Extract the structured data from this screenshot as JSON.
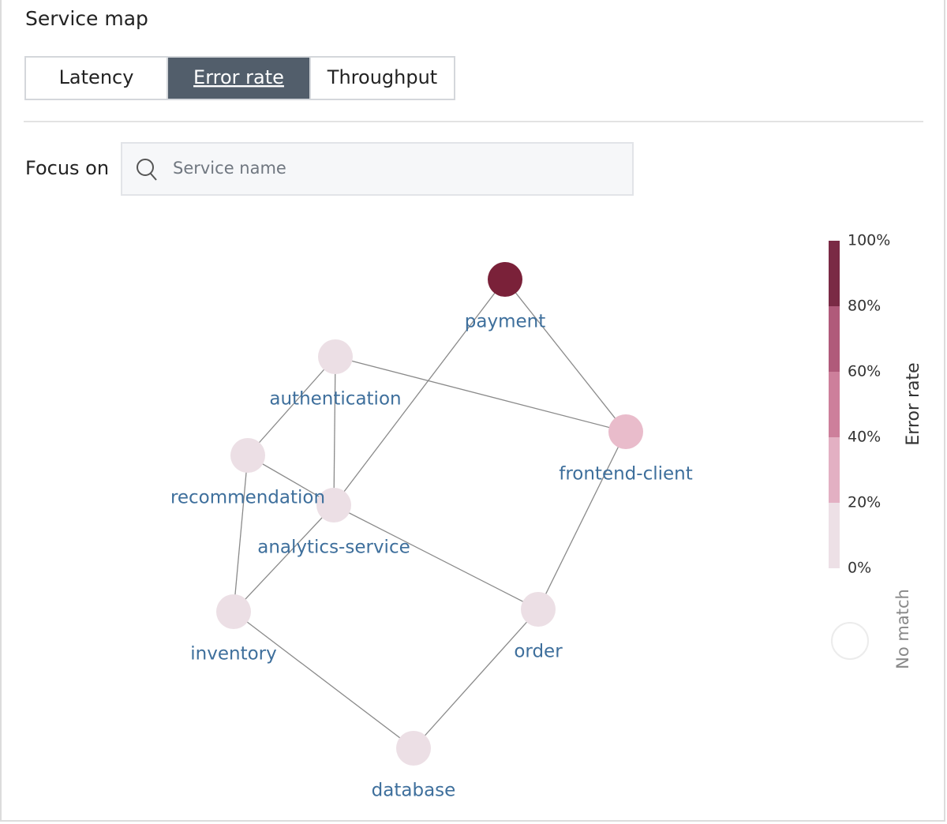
{
  "header": {
    "title": "Service map"
  },
  "tabs": [
    {
      "label": "Latency",
      "active": false
    },
    {
      "label": "Error rate",
      "active": true
    },
    {
      "label": "Throughput",
      "active": false
    }
  ],
  "focus": {
    "label": "Focus on",
    "placeholder": "Service name"
  },
  "nodes": [
    {
      "label": "payment",
      "color": "#7a2139"
    },
    {
      "label": "authentication",
      "color": "#ecdfe5"
    },
    {
      "label": "frontend-client",
      "color": "#e9bccb"
    },
    {
      "label": "recommendation",
      "color": "#ecdfe5"
    },
    {
      "label": "analytics-service",
      "color": "#ecdfe5"
    },
    {
      "label": "inventory",
      "color": "#ecdfe5"
    },
    {
      "label": "order",
      "color": "#ecdfe5"
    },
    {
      "label": "database",
      "color": "#ecdfe5"
    }
  ],
  "legend": {
    "title": "Error rate",
    "ticks": [
      "100%",
      "80%",
      "60%",
      "40%",
      "20%",
      "0%"
    ],
    "colors": [
      "#7a2a45",
      "#b05a7a",
      "#cd7f9b",
      "#e3b0c3",
      "#ede0e6"
    ],
    "no_match": "No match"
  }
}
